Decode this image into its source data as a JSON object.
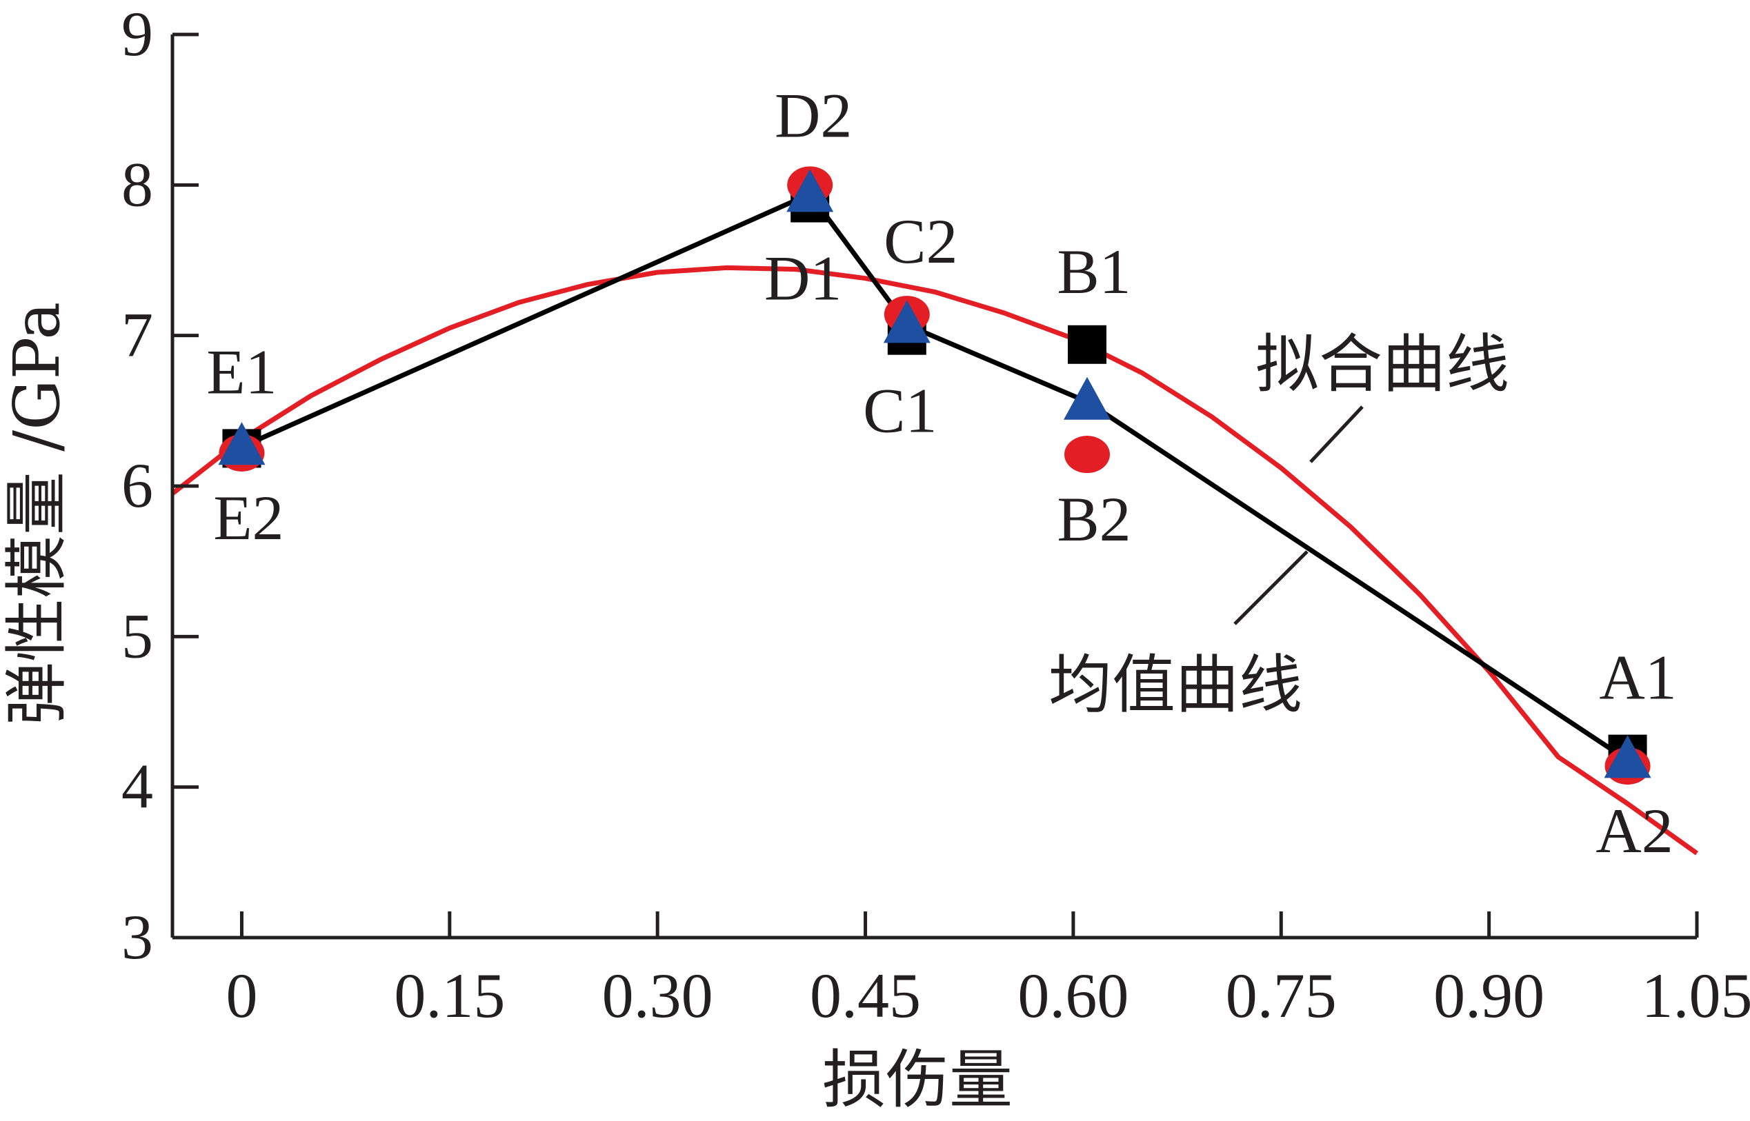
{
  "chart_data": {
    "type": "line",
    "xlabel": "损伤量",
    "ylabel": "弹性模量 /GPa",
    "xlim": [
      -0.05,
      1.05
    ],
    "ylim": [
      3,
      9
    ],
    "xticks": [
      0,
      0.15,
      0.3,
      0.45,
      0.6,
      0.75,
      0.9,
      1.05
    ],
    "xtick_labels": [
      "0",
      "0.15",
      "0.30",
      "0.45",
      "0.60",
      "0.75",
      "0.90",
      "1.05"
    ],
    "yticks": [
      3,
      4,
      5,
      6,
      7,
      8,
      9
    ],
    "ytick_labels": [
      "3",
      "4",
      "5",
      "6",
      "7",
      "8",
      "9"
    ],
    "grid": false,
    "series": [
      {
        "role": "group1",
        "marker": "square",
        "color": "#000000",
        "points": [
          {
            "x": 0.0,
            "y": 6.25,
            "label": "E1"
          },
          {
            "x": 0.41,
            "y": 7.88,
            "label": "D1"
          },
          {
            "x": 0.48,
            "y": 7.0,
            "label": "C1"
          },
          {
            "x": 0.61,
            "y": 6.94,
            "label": "B1"
          },
          {
            "x": 1.0,
            "y": 4.22,
            "label": "A1"
          }
        ]
      },
      {
        "role": "group2",
        "marker": "circle",
        "color": "#e41e25",
        "points": [
          {
            "x": 0.0,
            "y": 6.22,
            "label": "E2"
          },
          {
            "x": 0.41,
            "y": 8.0,
            "label": "D2"
          },
          {
            "x": 0.48,
            "y": 7.14,
            "label": "C2"
          },
          {
            "x": 0.61,
            "y": 6.21,
            "label": "B2"
          },
          {
            "x": 1.0,
            "y": 4.14,
            "label": "A2"
          }
        ]
      },
      {
        "name": "均值曲线",
        "marker": "triangle",
        "color": "#1e4fa0",
        "line_color": "#000000",
        "points": [
          {
            "x": 0.0,
            "y": 6.26
          },
          {
            "x": 0.41,
            "y": 7.94
          },
          {
            "x": 0.48,
            "y": 7.07
          },
          {
            "x": 0.61,
            "y": 6.56
          },
          {
            "x": 1.0,
            "y": 4.18
          }
        ]
      },
      {
        "name": "拟合曲线",
        "line_color": "#e41e25",
        "x": [
          -0.05,
          0.0,
          0.05,
          0.1,
          0.15,
          0.2,
          0.25,
          0.3,
          0.35,
          0.4,
          0.45,
          0.5,
          0.55,
          0.6,
          0.65,
          0.7,
          0.75,
          0.8,
          0.85,
          0.9,
          0.95,
          1.0,
          1.05
        ],
        "y": [
          5.95,
          6.31,
          6.6,
          6.84,
          7.05,
          7.22,
          7.34,
          7.42,
          7.45,
          7.44,
          7.38,
          7.29,
          7.15,
          6.98,
          6.75,
          6.46,
          6.12,
          5.73,
          5.28,
          4.77,
          4.2,
          3.89,
          3.56
        ]
      }
    ],
    "annotations": [
      {
        "text": "拟合曲线",
        "target": "fit-curve"
      },
      {
        "text": "均值曲线",
        "target": "mean-curve"
      }
    ]
  }
}
